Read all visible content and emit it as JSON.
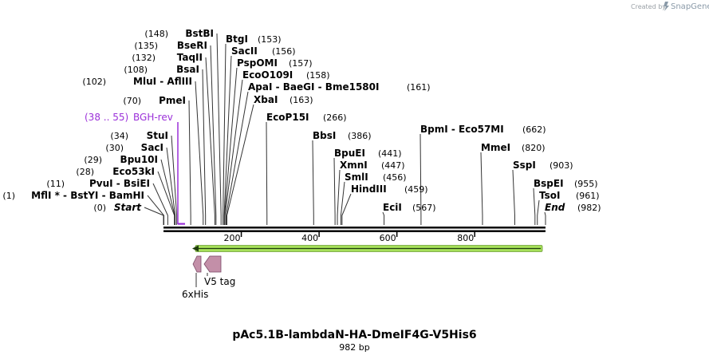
{
  "credit": {
    "prefix": "Created by",
    "brand": "SnapGene"
  },
  "title": "pAc5.1B-lambdaN-HA-DmeIF4G-V5His6",
  "length_label": "982 bp",
  "sequence_length": 982,
  "primer": {
    "range": "(38 .. 55)",
    "name": "BGH-rev",
    "color": "#9b30d9"
  },
  "features": [
    {
      "name": "V5 tag",
      "color": "#c38fa8"
    },
    {
      "name": "6xHis",
      "color": "#c38fa8"
    }
  ],
  "orf_color": "#a6e05a",
  "axis_ticks": [
    "200",
    "400",
    "600",
    "800"
  ],
  "sites": [
    {
      "pos": "(0)",
      "name": "Start",
      "italic": true
    },
    {
      "pos": "(1)",
      "name": "MflI * - BstYI - BamHI"
    },
    {
      "pos": "(11)",
      "name": "PvuI - BsiEI"
    },
    {
      "pos": "(28)",
      "name": "Eco53kI"
    },
    {
      "pos": "(29)",
      "name": "Bpu10I"
    },
    {
      "pos": "(30)",
      "name": "SacI"
    },
    {
      "pos": "(34)",
      "name": "StuI"
    },
    {
      "pos": "(70)",
      "name": "PmeI"
    },
    {
      "pos": "(102)",
      "name": "MluI - AflIII"
    },
    {
      "pos": "(108)",
      "name": "BsaI"
    },
    {
      "pos": "(132)",
      "name": "TaqII"
    },
    {
      "pos": "(135)",
      "name": "BseRI"
    },
    {
      "pos": "(148)",
      "name": "BstBI"
    },
    {
      "pos": "(153)",
      "name": "BtgI"
    },
    {
      "pos": "(156)",
      "name": "SacII"
    },
    {
      "pos": "(157)",
      "name": "PspOMI"
    },
    {
      "pos": "(158)",
      "name": "EcoO109I"
    },
    {
      "pos": "(161)",
      "name": "ApaI - BaeGI - Bme1580I"
    },
    {
      "pos": "(163)",
      "name": "XbaI"
    },
    {
      "pos": "(266)",
      "name": "EcoP15I"
    },
    {
      "pos": "(386)",
      "name": "BbsI"
    },
    {
      "pos": "(441)",
      "name": "BpuEI"
    },
    {
      "pos": "(447)",
      "name": "XmnI"
    },
    {
      "pos": "(456)",
      "name": "SmlI"
    },
    {
      "pos": "(459)",
      "name": "HindIII"
    },
    {
      "pos": "(567)",
      "name": "EciI"
    },
    {
      "pos": "(662)",
      "name": "BpmI - Eco57MI"
    },
    {
      "pos": "(820)",
      "name": "MmeI"
    },
    {
      "pos": "(903)",
      "name": "SspI"
    },
    {
      "pos": "(955)",
      "name": "BspEI"
    },
    {
      "pos": "(961)",
      "name": "TsoI"
    },
    {
      "pos": "(982)",
      "name": "End",
      "italic": true
    }
  ]
}
